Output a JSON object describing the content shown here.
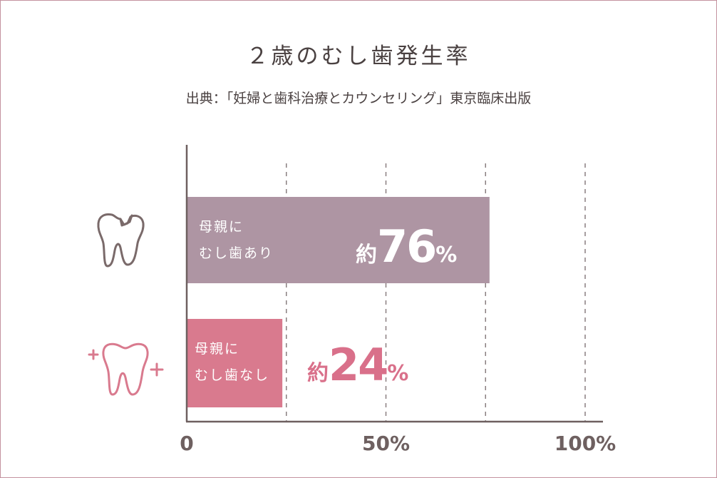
{
  "chart_data": {
    "type": "bar",
    "orientation": "horizontal",
    "title": "２歳のむし歯発生率",
    "subtitle": "出典：「妊婦と歯科治療とカウンセリング」東京臨床出版",
    "categories": [
      [
        "母親に",
        "むし歯あり"
      ],
      [
        "母親に",
        "むし歯なし"
      ]
    ],
    "values": [
      76,
      24
    ],
    "value_labels": [
      {
        "prefix": "約",
        "number": "76",
        "unit": "%"
      },
      {
        "prefix": "約",
        "number": "24",
        "unit": "%"
      }
    ],
    "xlim": [
      0,
      100
    ],
    "x_ticks": [
      0,
      50,
      100
    ],
    "x_tick_labels": [
      "0",
      "50%",
      "100%"
    ],
    "grid": "vertical dashed at 25% intervals",
    "icons": [
      "decayed-tooth-icon",
      "healthy-tooth-icon"
    ],
    "colors": {
      "bar_with_caries": "#ae95a3",
      "bar_without_caries": "#d97a8e",
      "value_with_caries": "#ffffff",
      "value_without_caries": "#d9708a",
      "axis": "#6e6060",
      "grid": "#8a7f80",
      "text": "#4a4141",
      "frame": "#c4929f",
      "icon_decayed": "#7a6a6a",
      "icon_healthy": "#d97a8e"
    }
  }
}
